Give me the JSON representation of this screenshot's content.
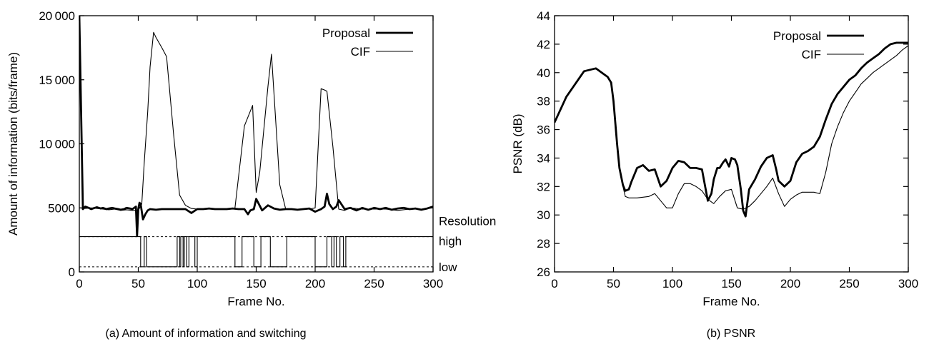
{
  "charts": [
    {
      "type": "line",
      "caption": "(a) Amount of information and switching",
      "xlabel": "Frame No.",
      "ylabel": "Amount of information (bits/frame)",
      "xlim": [
        0,
        300
      ],
      "ylim": [
        0,
        20000
      ],
      "x_ticks": [
        0,
        50,
        100,
        150,
        200,
        250,
        300
      ],
      "y_ticks": [
        0,
        5000,
        10000,
        15000,
        20000
      ],
      "y_tick_labels": [
        "0",
        "5000",
        "10 000",
        "15 000",
        "20 000"
      ],
      "legend_position": "top-right",
      "series": [
        {
          "name": "Proposal",
          "color": "#000000",
          "width": 2.8,
          "x": [
            0,
            3,
            5,
            8,
            10,
            13,
            15,
            18,
            20,
            23,
            25,
            28,
            30,
            33,
            35,
            38,
            40,
            43,
            45,
            48,
            49,
            50,
            51,
            52,
            54,
            56,
            58,
            60,
            65,
            70,
            75,
            80,
            85,
            90,
            95,
            100,
            105,
            110,
            115,
            120,
            125,
            130,
            135,
            140,
            143,
            145,
            148,
            150,
            155,
            160,
            165,
            170,
            175,
            180,
            185,
            190,
            195,
            200,
            205,
            208,
            210,
            212,
            215,
            218,
            220,
            225,
            230,
            235,
            240,
            245,
            250,
            255,
            260,
            265,
            270,
            275,
            280,
            285,
            290,
            295,
            300
          ],
          "y": [
            20000,
            4900,
            5100,
            5000,
            4900,
            5000,
            5050,
            4950,
            5000,
            4900,
            4950,
            5000,
            4950,
            4900,
            4850,
            4900,
            5000,
            4950,
            4900,
            5100,
            2800,
            4900,
            5400,
            5300,
            4100,
            4500,
            4800,
            4900,
            4850,
            4900,
            4900,
            4900,
            4900,
            4900,
            4600,
            4900,
            4900,
            4950,
            4900,
            4900,
            4900,
            4950,
            4900,
            4900,
            4500,
            4800,
            4900,
            5700,
            4800,
            5200,
            4950,
            4850,
            4900,
            4900,
            4850,
            4900,
            4950,
            4700,
            4900,
            5100,
            6100,
            5300,
            4900,
            5100,
            5600,
            4900,
            5000,
            4800,
            5000,
            4850,
            5000,
            4900,
            5000,
            4850,
            4950,
            5000,
            4900,
            4950,
            4850,
            4950,
            5100
          ]
        },
        {
          "name": "CIF",
          "color": "#000000",
          "width": 1.1,
          "x": [
            0,
            5,
            10,
            15,
            20,
            25,
            30,
            35,
            40,
            45,
            50,
            53,
            55,
            58,
            60,
            63,
            65,
            70,
            74,
            80,
            85,
            90,
            95,
            100,
            110,
            120,
            125,
            130,
            132,
            140,
            147,
            150,
            153,
            160,
            163,
            170,
            175,
            180,
            185,
            190,
            195,
            200,
            205,
            208,
            210,
            215,
            220,
            225,
            230,
            240,
            250,
            260,
            270,
            280,
            290,
            300
          ],
          "y": [
            5000,
            4950,
            5000,
            4950,
            4900,
            4850,
            4900,
            4800,
            4850,
            4800,
            4800,
            5300,
            8500,
            12500,
            16000,
            18700,
            18300,
            17500,
            16800,
            10700,
            6000,
            5200,
            4950,
            4900,
            4900,
            4900,
            4900,
            4950,
            5000,
            11400,
            13000,
            6200,
            7800,
            14500,
            17000,
            6800,
            4900,
            4900,
            4850,
            4900,
            4900,
            5000,
            14300,
            14200,
            14100,
            9800,
            4900,
            4800,
            5000,
            4900,
            4900,
            4900,
            4800,
            4900,
            4900,
            5000
          ]
        }
      ],
      "resolution": {
        "title": "Resolution",
        "levels": [
          {
            "name": "high",
            "y": 2750
          },
          {
            "name": "low",
            "y": 400
          }
        ],
        "segments": [
          {
            "start": 0,
            "end": 50,
            "level": "high"
          },
          {
            "start": 52,
            "end": 55,
            "level": "low"
          },
          {
            "start": 57,
            "end": 83,
            "level": "low"
          },
          {
            "start": 85,
            "end": 86,
            "level": "low"
          },
          {
            "start": 88,
            "end": 89,
            "level": "low"
          },
          {
            "start": 91,
            "end": 93,
            "level": "low"
          },
          {
            "start": 98,
            "end": 100,
            "level": "low"
          },
          {
            "start": 132,
            "end": 138,
            "level": "low"
          },
          {
            "start": 148,
            "end": 154,
            "level": "low"
          },
          {
            "start": 162,
            "end": 176,
            "level": "low"
          },
          {
            "start": 200,
            "end": 210,
            "level": "low"
          },
          {
            "start": 214,
            "end": 216,
            "level": "low"
          },
          {
            "start": 218,
            "end": 221,
            "level": "low"
          },
          {
            "start": 224,
            "end": 226,
            "level": "low"
          }
        ]
      }
    },
    {
      "type": "line",
      "caption": "(b) PSNR",
      "xlabel": "Frame No.",
      "ylabel": "PSNR (dB)",
      "xlim": [
        0,
        300
      ],
      "ylim": [
        26,
        44
      ],
      "x_ticks": [
        0,
        50,
        100,
        150,
        200,
        250,
        300
      ],
      "y_ticks": [
        26,
        28,
        30,
        32,
        34,
        36,
        38,
        40,
        42,
        44
      ],
      "y_tick_labels": [
        "26",
        "28",
        "30",
        "32",
        "34",
        "36",
        "38",
        "40",
        "42",
        "44"
      ],
      "legend_position": "top-right",
      "series": [
        {
          "name": "Proposal",
          "color": "#000000",
          "width": 2.8,
          "x": [
            0,
            10,
            20,
            25,
            30,
            35,
            40,
            45,
            48,
            50,
            53,
            55,
            58,
            60,
            63,
            65,
            70,
            75,
            80,
            85,
            90,
            95,
            100,
            105,
            110,
            115,
            120,
            125,
            130,
            133,
            135,
            138,
            140,
            143,
            145,
            148,
            150,
            153,
            155,
            158,
            160,
            162,
            165,
            170,
            175,
            180,
            185,
            188,
            190,
            195,
            200,
            205,
            210,
            215,
            220,
            225,
            230,
            235,
            240,
            245,
            250,
            255,
            260,
            265,
            270,
            275,
            280,
            285,
            290,
            295,
            300
          ],
          "y": [
            36.5,
            38.3,
            39.5,
            40.1,
            40.2,
            40.3,
            40.0,
            39.7,
            39.3,
            38.0,
            35.0,
            33.3,
            32.1,
            31.7,
            31.8,
            32.3,
            33.3,
            33.5,
            33.1,
            33.2,
            32.0,
            32.4,
            33.3,
            33.8,
            33.7,
            33.3,
            33.3,
            33.2,
            31.0,
            31.5,
            32.5,
            33.3,
            33.3,
            33.7,
            33.9,
            33.4,
            34.0,
            33.9,
            33.5,
            31.8,
            30.3,
            29.9,
            31.8,
            32.5,
            33.4,
            34.0,
            34.2,
            33.2,
            32.4,
            32.0,
            32.4,
            33.7,
            34.3,
            34.5,
            34.8,
            35.5,
            36.7,
            37.8,
            38.5,
            39.0,
            39.5,
            39.8,
            40.3,
            40.7,
            41.0,
            41.3,
            41.7,
            42.0,
            42.1,
            42.1,
            42.1
          ]
        },
        {
          "name": "CIF",
          "color": "#000000",
          "width": 1.1,
          "x": [
            0,
            10,
            20,
            25,
            30,
            35,
            40,
            45,
            48,
            50,
            53,
            55,
            58,
            60,
            63,
            65,
            70,
            80,
            85,
            90,
            95,
            100,
            105,
            110,
            115,
            120,
            125,
            130,
            135,
            140,
            145,
            150,
            155,
            160,
            165,
            170,
            175,
            180,
            185,
            190,
            195,
            200,
            205,
            210,
            220,
            225,
            230,
            235,
            240,
            245,
            250,
            255,
            260,
            265,
            270,
            275,
            280,
            285,
            290,
            295,
            300
          ],
          "y": [
            36.5,
            38.3,
            39.5,
            40.1,
            40.2,
            40.3,
            40.0,
            39.7,
            39.3,
            38.0,
            35.0,
            33.3,
            32.0,
            31.3,
            31.2,
            31.2,
            31.2,
            31.3,
            31.5,
            31.0,
            30.5,
            30.5,
            31.5,
            32.2,
            32.2,
            32.0,
            31.7,
            31.1,
            30.8,
            31.3,
            31.7,
            31.8,
            30.5,
            30.4,
            30.6,
            31.0,
            31.5,
            32.0,
            32.6,
            31.5,
            30.6,
            31.1,
            31.4,
            31.6,
            31.6,
            31.5,
            33.0,
            35.0,
            36.2,
            37.2,
            38.0,
            38.6,
            39.2,
            39.6,
            40.0,
            40.3,
            40.6,
            40.9,
            41.2,
            41.6,
            41.9
          ]
        }
      ]
    }
  ]
}
